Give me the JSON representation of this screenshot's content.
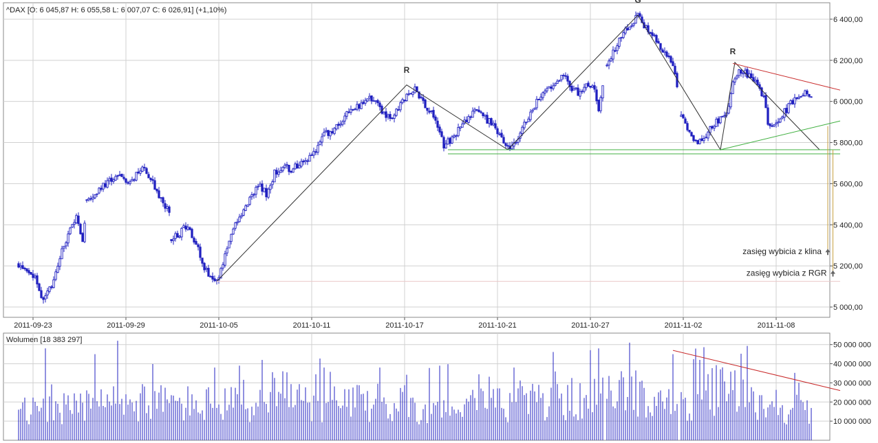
{
  "chart_data": [
    {
      "type": "candlestick",
      "title": "^DAX [O: 6 045,87  H: 6 055,58  L: 6 007,07  C: 6 026,91] (+1,10%)",
      "instrument": "^DAX",
      "ylim": [
        4950,
        6480
      ],
      "y_ticks": [
        5000,
        5200,
        5400,
        5600,
        5800,
        6000,
        6200,
        6400
      ],
      "y_tick_labels": [
        "5 000,00",
        "5 200,00",
        "5 400,00",
        "5 600,00",
        "5 800,00",
        "6 000,00",
        "6 200,00",
        "6 400,00"
      ],
      "x_tick_labels": [
        {
          "label": "2011-09-23",
          "bar": 7
        },
        {
          "label": "2011-09-29",
          "bar": 52
        },
        {
          "label": "2011-10-05",
          "bar": 97
        },
        {
          "label": "2011-10-11",
          "bar": 142
        },
        {
          "label": "2011-10-17",
          "bar": 187
        },
        {
          "label": "2011-10-21",
          "bar": 232
        },
        {
          "label": "2011-10-27",
          "bar": 277
        },
        {
          "label": "2011-11-02",
          "bar": 322
        },
        {
          "label": "2011-11-08",
          "bar": 367
        }
      ],
      "bar_count": 385,
      "price_anchors": [
        [
          0,
          5210
        ],
        [
          3,
          5180
        ],
        [
          8,
          5150
        ],
        [
          12,
          5030
        ],
        [
          16,
          5100
        ],
        [
          20,
          5250
        ],
        [
          24,
          5350
        ],
        [
          28,
          5450
        ],
        [
          31,
          5330
        ],
        [
          33,
          5520
        ],
        [
          38,
          5560
        ],
        [
          44,
          5620
        ],
        [
          48,
          5640
        ],
        [
          54,
          5600
        ],
        [
          60,
          5680
        ],
        [
          64,
          5620
        ],
        [
          68,
          5540
        ],
        [
          71,
          5480
        ],
        [
          73,
          5470
        ],
        [
          74,
          5330
        ],
        [
          78,
          5360
        ],
        [
          81,
          5390
        ],
        [
          84,
          5350
        ],
        [
          86,
          5310
        ],
        [
          90,
          5190
        ],
        [
          93,
          5140
        ],
        [
          96,
          5120
        ],
        [
          100,
          5250
        ],
        [
          104,
          5380
        ],
        [
          108,
          5440
        ],
        [
          112,
          5520
        ],
        [
          116,
          5600
        ],
        [
          120,
          5550
        ],
        [
          124,
          5650
        ],
        [
          128,
          5690
        ],
        [
          132,
          5670
        ],
        [
          136,
          5700
        ],
        [
          140,
          5710
        ],
        [
          144,
          5770
        ],
        [
          148,
          5840
        ],
        [
          152,
          5850
        ],
        [
          156,
          5900
        ],
        [
          160,
          5950
        ],
        [
          164,
          5970
        ],
        [
          168,
          6010
        ],
        [
          172,
          6020
        ],
        [
          176,
          5940
        ],
        [
          180,
          5920
        ],
        [
          184,
          5970
        ],
        [
          188,
          6020
        ],
        [
          192,
          6070
        ],
        [
          196,
          5990
        ],
        [
          200,
          5940
        ],
        [
          204,
          5850
        ],
        [
          206,
          5790
        ],
        [
          210,
          5820
        ],
        [
          214,
          5870
        ],
        [
          218,
          5930
        ],
        [
          222,
          5970
        ],
        [
          226,
          5920
        ],
        [
          230,
          5880
        ],
        [
          234,
          5820
        ],
        [
          237,
          5770
        ],
        [
          240,
          5790
        ],
        [
          244,
          5860
        ],
        [
          248,
          5950
        ],
        [
          252,
          6010
        ],
        [
          256,
          6050
        ],
        [
          260,
          6100
        ],
        [
          264,
          6130
        ],
        [
          268,
          6060
        ],
        [
          272,
          6040
        ],
        [
          276,
          6080
        ],
        [
          279,
          6050
        ],
        [
          281,
          5970
        ],
        [
          285,
          6170
        ],
        [
          289,
          6260
        ],
        [
          293,
          6330
        ],
        [
          297,
          6380
        ],
        [
          300,
          6420
        ],
        [
          303,
          6370
        ],
        [
          306,
          6340
        ],
        [
          309,
          6290
        ],
        [
          312,
          6250
        ],
        [
          315,
          6220
        ],
        [
          318,
          6150
        ],
        [
          321,
          5920
        ],
        [
          324,
          5870
        ],
        [
          327,
          5800
        ],
        [
          329,
          5790
        ],
        [
          332,
          5820
        ],
        [
          335,
          5880
        ],
        [
          338,
          5900
        ],
        [
          341,
          5920
        ],
        [
          343,
          5950
        ],
        [
          346,
          6080
        ],
        [
          349,
          6160
        ],
        [
          352,
          6140
        ],
        [
          355,
          6120
        ],
        [
          358,
          6090
        ],
        [
          361,
          6020
        ],
        [
          363,
          5900
        ],
        [
          366,
          5880
        ],
        [
          369,
          5930
        ],
        [
          372,
          5960
        ],
        [
          375,
          6000
        ],
        [
          378,
          6020
        ],
        [
          381,
          6050
        ],
        [
          384,
          6030
        ]
      ],
      "gaps": [
        [
          32,
          33
        ],
        [
          73,
          74
        ],
        [
          85,
          86
        ],
        [
          283,
          285
        ],
        [
          319,
          321
        ]
      ],
      "pattern_labels": [
        {
          "text": "R",
          "bar": 188,
          "price": 6140
        },
        {
          "text": "G",
          "bar": 300,
          "price": 6480
        },
        {
          "text": "R",
          "bar": 346,
          "price": 6230
        }
      ],
      "trend_lines": [
        {
          "color": "#303030",
          "points": [
            [
              96,
              5125
            ],
            [
              188,
              6080
            ],
            [
              237,
              5765
            ],
            [
              300,
              6420
            ],
            [
              340,
              5765
            ],
            [
              347,
              6190
            ],
            [
              388,
              5765
            ]
          ]
        },
        {
          "color": "#c82828",
          "points": [
            [
              346,
              6185
            ],
            [
              398,
              6055
            ]
          ]
        },
        {
          "color": "#40b040",
          "points": [
            [
              340,
              5765
            ],
            [
              398,
              5905
            ]
          ]
        },
        {
          "color": "#40b040",
          "points": [
            [
              208,
              5765
            ],
            [
              398,
              5765
            ]
          ]
        },
        {
          "color": "#40b040",
          "points": [
            [
              208,
              5745
            ],
            [
              398,
              5745
            ]
          ]
        },
        {
          "color": "#ebc8c8",
          "points": [
            [
              96,
              5125
            ],
            [
              398,
              5125
            ]
          ]
        },
        {
          "color": "#c8a040",
          "points": [
            [
              392,
              5880
            ],
            [
              392,
              5270
            ]
          ]
        },
        {
          "color": "#c8a040",
          "points": [
            [
              394.5,
              5765
            ],
            [
              394.5,
              5170
            ]
          ]
        }
      ],
      "annotations": [
        {
          "text": "zasięg wybicia z klina",
          "bar": 392,
          "price": 5270
        },
        {
          "text": "zasięg wybicia z RGR",
          "bar": 394.5,
          "price": 5165
        }
      ],
      "colors": {
        "candle": "#2020c0",
        "pattern": "#303030",
        "resistance": "#c82828",
        "support": "#40b040",
        "range": "#c8a040",
        "grid": "#d0d0d0"
      }
    },
    {
      "type": "bar",
      "title": "Wolumen [18 383 297]",
      "ylim": [
        0,
        56000000
      ],
      "y_ticks": [
        10000000,
        20000000,
        30000000,
        40000000,
        50000000
      ],
      "y_tick_labels": [
        "10 000 000",
        "20 000 000",
        "30 000 000",
        "40 000 000",
        "50 000 000"
      ],
      "volume_anchors": [
        [
          0,
          15000000
        ],
        [
          30,
          18000000
        ],
        [
          60,
          20000000
        ],
        [
          100,
          19000000
        ],
        [
          150,
          20000000
        ],
        [
          200,
          18000000
        ],
        [
          240,
          21000000
        ],
        [
          280,
          22000000
        ],
        [
          300,
          26000000
        ],
        [
          320,
          17000000
        ],
        [
          340,
          28000000
        ],
        [
          360,
          21000000
        ],
        [
          384,
          15000000
        ]
      ],
      "volume_spikes": [
        [
          13,
          48000000
        ],
        [
          37,
          45000000
        ],
        [
          48,
          52000000
        ],
        [
          95,
          38000000
        ],
        [
          107,
          39000000
        ],
        [
          118,
          42000000
        ],
        [
          148,
          38000000
        ],
        [
          175,
          38000000
        ],
        [
          204,
          39000000
        ],
        [
          240,
          38000000
        ],
        [
          281,
          48000000
        ],
        [
          296,
          51000000
        ],
        [
          317,
          45000000
        ],
        [
          330,
          42000000
        ],
        [
          378,
          30000000
        ]
      ],
      "trend_lines": [
        {
          "color": "#c82828",
          "points": [
            [
              317,
              47000000
            ],
            [
              398,
              26000000
            ]
          ]
        }
      ]
    }
  ]
}
